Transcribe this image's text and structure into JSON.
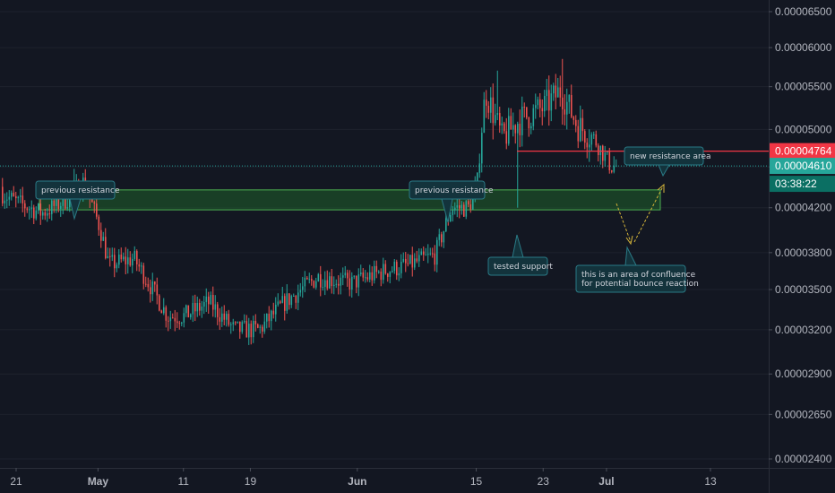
{
  "chart_data": {
    "type": "candlestick",
    "y_axis": {
      "ticks": [
        "0.00006500",
        "0.00006000",
        "0.00005500",
        "0.00005000",
        "0.00004600",
        "0.00004200",
        "0.00003800",
        "0.00003500",
        "0.00003200",
        "0.00002900",
        "0.00002650",
        "0.00002400"
      ],
      "scale": "log"
    },
    "x_axis": {
      "ticks": [
        {
          "label": "21",
          "bold": false
        },
        {
          "label": "May",
          "bold": true
        },
        {
          "label": "11",
          "bold": false
        },
        {
          "label": "19",
          "bold": false
        },
        {
          "label": "Jun",
          "bold": true
        },
        {
          "label": "15",
          "bold": false
        },
        {
          "label": "23",
          "bold": false
        },
        {
          "label": "Jul",
          "bold": true
        },
        {
          "label": "13",
          "bold": false
        }
      ]
    },
    "price_path": [
      {
        "date": "Apr 18",
        "price": 4.4e-05
      },
      {
        "date": "Apr 21",
        "price": 4.25e-05
      },
      {
        "date": "Apr 24",
        "price": 4.15e-05
      },
      {
        "date": "Apr 27",
        "price": 4.28e-05
      },
      {
        "date": "Apr 29",
        "price": 4.45e-05
      },
      {
        "date": "May 01",
        "price": 4e-05
      },
      {
        "date": "May 02",
        "price": 3.7e-05
      },
      {
        "date": "May 05",
        "price": 3.75e-05
      },
      {
        "date": "May 09",
        "price": 3.3e-05
      },
      {
        "date": "May 11",
        "price": 3.3e-05
      },
      {
        "date": "May 14",
        "price": 3.4e-05
      },
      {
        "date": "May 17",
        "price": 3.2e-05
      },
      {
        "date": "May 20",
        "price": 3.2e-05
      },
      {
        "date": "May 23",
        "price": 3.4e-05
      },
      {
        "date": "May 27",
        "price": 3.6e-05
      },
      {
        "date": "May 31",
        "price": 3.55e-05
      },
      {
        "date": "Jun 04",
        "price": 3.65e-05
      },
      {
        "date": "Jun 07",
        "price": 3.7e-05
      },
      {
        "date": "Jun 10",
        "price": 3.78e-05
      },
      {
        "date": "Jun 12",
        "price": 4.2e-05
      },
      {
        "date": "Jun 14",
        "price": 4.2e-05
      },
      {
        "date": "Jun 15",
        "price": 4.4e-05
      },
      {
        "date": "Jun 16",
        "price": 5.45e-05
      },
      {
        "date": "Jun 18",
        "price": 4.9e-05
      },
      {
        "date": "Jun 20",
        "price": 5.1e-05
      },
      {
        "date": "Jun 23",
        "price": 5.25e-05
      },
      {
        "date": "Jun 25",
        "price": 5.45e-05
      },
      {
        "date": "Jun 27",
        "price": 5.05e-05
      },
      {
        "date": "Jun 29",
        "price": 4.9e-05
      },
      {
        "date": "Jul 01",
        "price": 4.61e-05
      }
    ],
    "current_price_label": "0.00004764",
    "last_price_label": "0.00004610",
    "countdown_label": "03:38:22",
    "support_zone": {
      "low": 4.18e-05,
      "high": 4.37e-05
    },
    "annotations": [
      {
        "text": "previous resistance"
      },
      {
        "text": "previous resistance"
      },
      {
        "text": "tested support"
      },
      {
        "text": "new resistance area"
      },
      {
        "text": [
          "this is an area of confluence",
          "for potential bounce reaction"
        ]
      }
    ],
    "colors": {
      "background": "#131722",
      "up": "#26a69a",
      "down": "#ef5350",
      "grid": "#1e222d",
      "zone_fill": "#1e5a2a",
      "zone_border": "#4caf50",
      "resistance_line": "#f23645",
      "dotted_line": "#26a69a",
      "callout_fill": "#13333c",
      "callout_border": "#2a7a86",
      "projection": "#d4b43a"
    }
  }
}
